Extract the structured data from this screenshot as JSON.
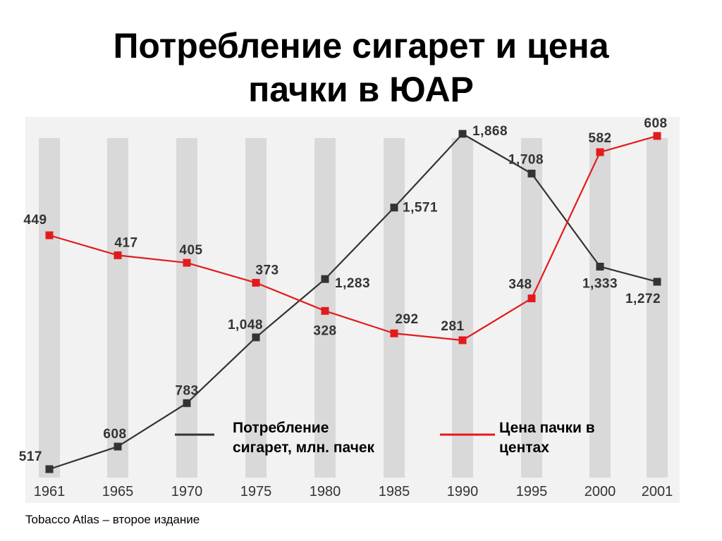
{
  "slide": {
    "title_line1": "Потребление сигарет и цена",
    "title_line2": "пачки в ЮАР",
    "source": "Tobacco Atlas – второе издание"
  },
  "chart_data": {
    "type": "line",
    "categories": [
      "1961",
      "1965",
      "1970",
      "1975",
      "1980",
      "1985",
      "1990",
      "1995",
      "2000",
      "2001"
    ],
    "series": [
      {
        "name": "Потребление сигарет, млн. пачек",
        "color": "#333333",
        "values": [
          517,
          608,
          783,
          1048,
          1283,
          1571,
          1868,
          1708,
          1333,
          1272
        ],
        "labels": [
          "517",
          "608",
          "783",
          "1,048",
          "1,283",
          "1,571",
          "1,868",
          "1,708",
          "1,333",
          "1,272"
        ]
      },
      {
        "name": "Цена пачки в центах",
        "color": "#e31a1c",
        "values": [
          449,
          417,
          405,
          373,
          328,
          292,
          281,
          348,
          582,
          608
        ],
        "labels": [
          "449",
          "417",
          "405",
          "373",
          "328",
          "292",
          "281",
          "348",
          "582",
          "608"
        ]
      }
    ],
    "legend": {
      "consumption_line1": "Потребление",
      "consumption_line2": "сигарет, млн. пачек",
      "price_line1": "Цена пачки в",
      "price_line2": "центах",
      "placement": "bottom-center"
    },
    "band_color": "#d9d9d9",
    "background_color": "#f2f2f2"
  }
}
